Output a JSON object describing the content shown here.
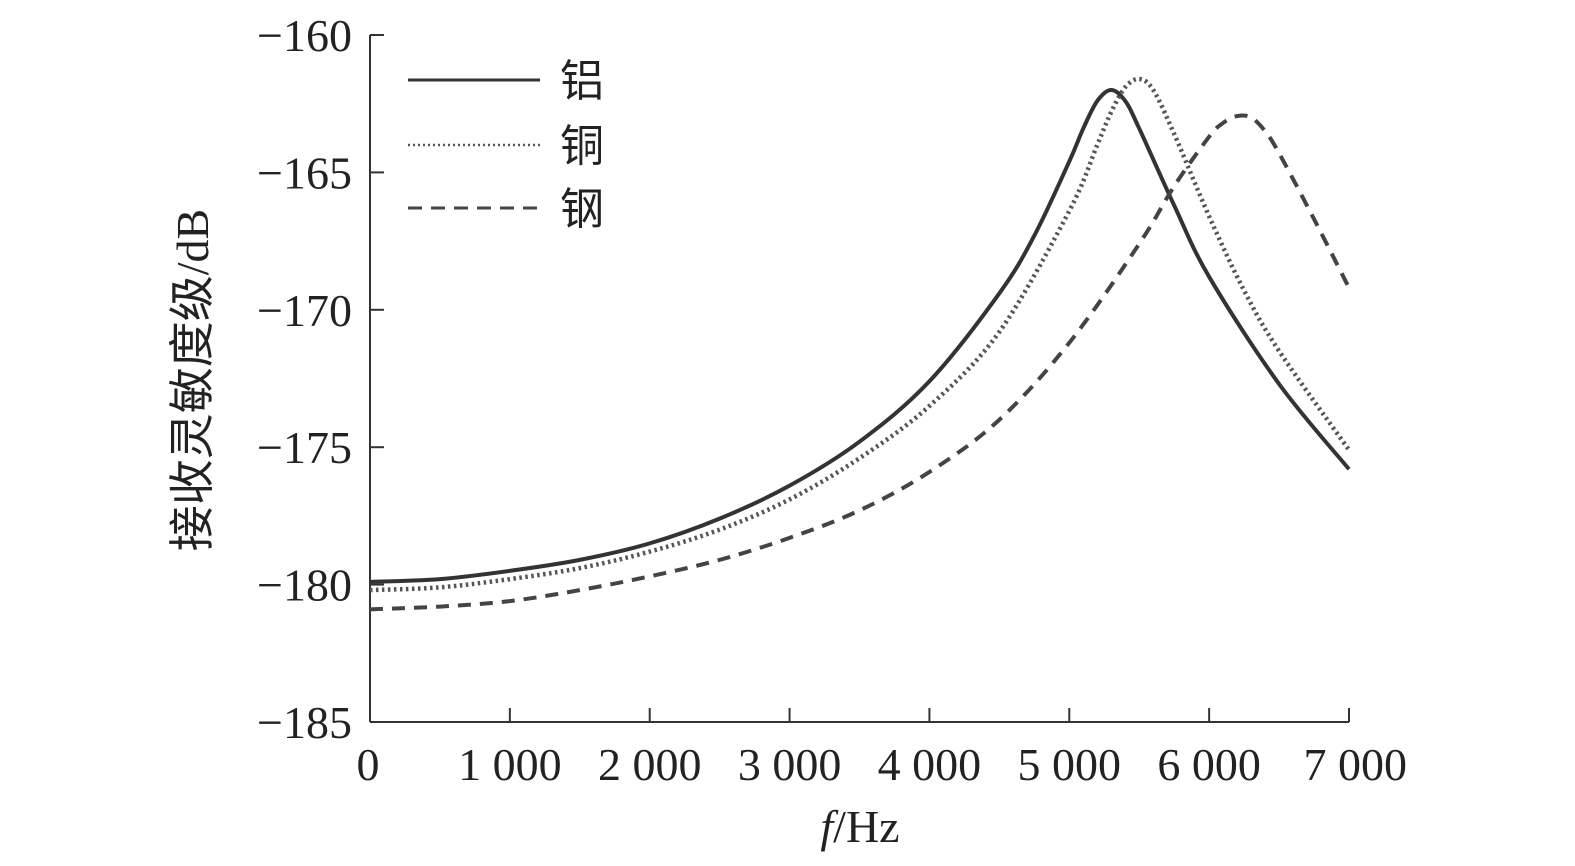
{
  "chart_data": {
    "type": "line",
    "xlabel_italic": "f",
    "xlabel_rest": "/Hz",
    "ylabel": "接收灵敏度级/dB",
    "xlim": [
      0,
      7000
    ],
    "ylim": [
      -185,
      -160
    ],
    "xticks": [
      0,
      1000,
      2000,
      3000,
      4000,
      5000,
      6000,
      7000
    ],
    "xtick_labels": [
      "0",
      "1 000",
      "2 000",
      "3 000",
      "4 000",
      "5 000",
      "6 000",
      "7 000"
    ],
    "yticks": [
      -160,
      -165,
      -170,
      -175,
      -180,
      -185
    ],
    "ytick_labels": [
      "−160",
      "−165",
      "−170",
      "−175",
      "−180",
      "−185"
    ],
    "grid": false,
    "legend_position": "top-left",
    "series": [
      {
        "name": "铝",
        "style": "solid",
        "color": "#333333",
        "x": [
          0,
          500,
          1000,
          1500,
          2000,
          2500,
          3000,
          3500,
          4000,
          4500,
          4750,
          5000,
          5100,
          5200,
          5300,
          5400,
          5500,
          5750,
          6000,
          6500,
          7000
        ],
        "y": [
          -179.9,
          -179.8,
          -179.5,
          -179.1,
          -178.5,
          -177.6,
          -176.4,
          -174.8,
          -172.6,
          -169.4,
          -167.3,
          -164.6,
          -163.4,
          -162.4,
          -162.0,
          -162.4,
          -163.4,
          -166.2,
          -168.8,
          -172.7,
          -175.8
        ]
      },
      {
        "name": "铜",
        "style": "dotted",
        "color": "#555555",
        "x": [
          0,
          500,
          1000,
          1500,
          2000,
          2500,
          3000,
          3500,
          4000,
          4500,
          5000,
          5200,
          5300,
          5400,
          5500,
          5600,
          5750,
          6000,
          6250,
          6500,
          7000
        ],
        "y": [
          -180.2,
          -180.1,
          -179.8,
          -179.4,
          -178.8,
          -178.0,
          -176.9,
          -175.4,
          -173.5,
          -170.8,
          -166.4,
          -164.0,
          -162.8,
          -161.9,
          -161.6,
          -162.0,
          -163.6,
          -166.6,
          -169.3,
          -171.5,
          -175.1
        ]
      },
      {
        "name": "钢",
        "style": "dashed",
        "color": "#444444",
        "x": [
          0,
          500,
          1000,
          1500,
          2000,
          2500,
          3000,
          3500,
          4000,
          4500,
          5000,
          5500,
          5750,
          6000,
          6100,
          6200,
          6300,
          6400,
          6500,
          6750,
          7000
        ],
        "y": [
          -180.9,
          -180.8,
          -180.6,
          -180.2,
          -179.7,
          -179.1,
          -178.3,
          -177.3,
          -175.9,
          -174.0,
          -171.2,
          -167.6,
          -165.5,
          -163.7,
          -163.2,
          -162.95,
          -163.0,
          -163.5,
          -164.3,
          -166.7,
          -169.2
        ]
      }
    ]
  }
}
